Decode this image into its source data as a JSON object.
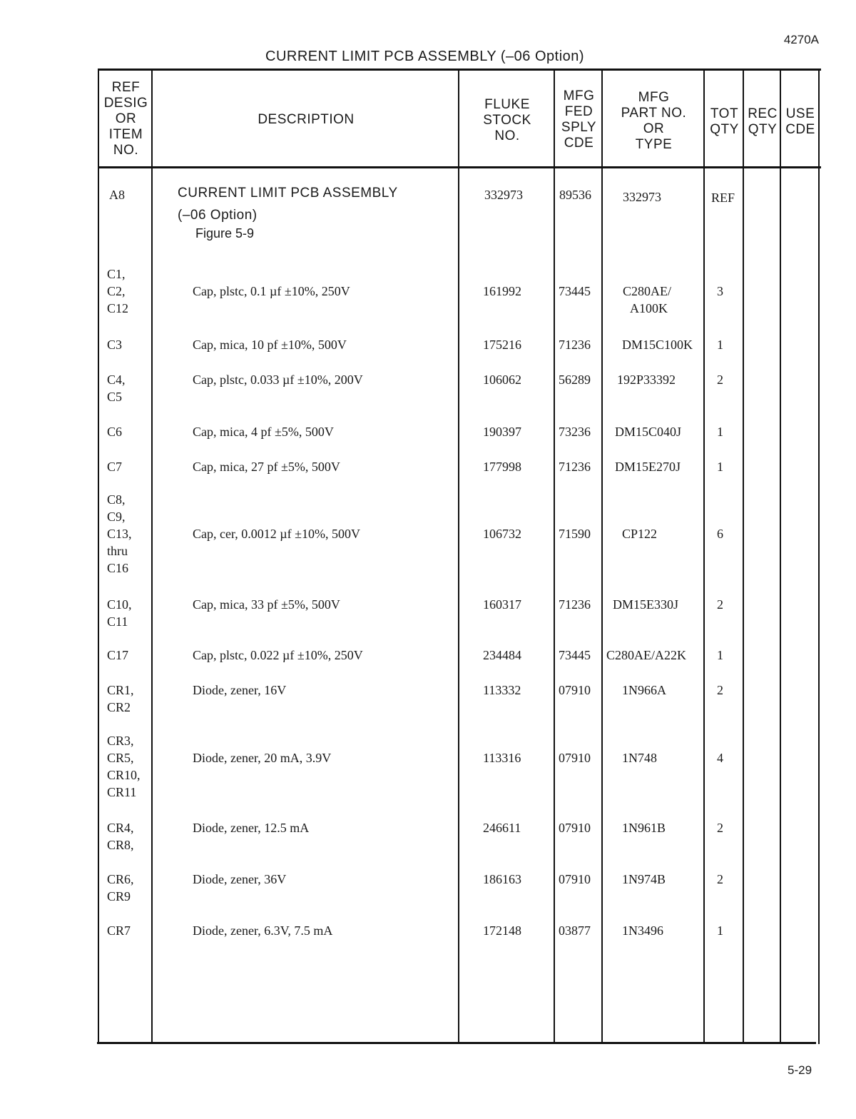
{
  "doc_code": "4270A",
  "title": "CURRENT LIMIT PCB ASSEMBLY (–06 Option)",
  "page_number": "5-29",
  "headers": {
    "ref": [
      "REF",
      "DESIG",
      "OR",
      "ITEM",
      "NO."
    ],
    "description": "DESCRIPTION",
    "stock": [
      "FLUKE",
      "STOCK",
      "NO."
    ],
    "fed": [
      "MFG",
      "FED",
      "SPLY",
      "CDE"
    ],
    "part": [
      "MFG",
      "PART NO.",
      "OR",
      "TYPE"
    ],
    "tot": [
      "TOT",
      "QTY"
    ],
    "rec": [
      "REC",
      "QTY"
    ],
    "use": [
      "USE",
      "CDE"
    ]
  },
  "assembly": {
    "ref": "A8",
    "description": "CURRENT LIMIT PCB ASSEMBLY",
    "option": "(–06 Option)",
    "figure": "Figure 5-9",
    "stock": "332973",
    "fed": "89536",
    "part": "332973",
    "tot": "REF"
  },
  "rows": [
    {
      "refs": [
        "C1,",
        "C2,",
        "C12"
      ],
      "description": "Cap, plstc, 0.1 µf ±10%, 250V",
      "stock": "161992",
      "fed": "73445",
      "part": [
        "C280AE/",
        "A100K"
      ],
      "tot": "3"
    },
    {
      "refs": [
        "C3"
      ],
      "description": "Cap, mica, 10 pf ±10%, 500V",
      "stock": "175216",
      "fed": "71236",
      "part": [
        "DM15C100K"
      ],
      "tot": "1"
    },
    {
      "refs": [
        "C4,",
        "C5"
      ],
      "description": "Cap, plstc, 0.033 µf ±10%, 200V",
      "stock": "106062",
      "fed": "56289",
      "part": [
        "192P33392"
      ],
      "tot": "2"
    },
    {
      "refs": [
        "C6"
      ],
      "description": "Cap, mica, 4 pf ±5%, 500V",
      "stock": "190397",
      "fed": "73236",
      "part": [
        "DM15C040J"
      ],
      "tot": "1"
    },
    {
      "refs": [
        "C7"
      ],
      "description": "Cap, mica, 27 pf ±5%, 500V",
      "stock": "177998",
      "fed": "71236",
      "part": [
        "DM15E270J"
      ],
      "tot": "1"
    },
    {
      "refs": [
        "C8,",
        "C9,",
        "C13,",
        "thru",
        "C16"
      ],
      "description": "Cap, cer, 0.0012 µf ±10%, 500V",
      "stock": "106732",
      "fed": "71590",
      "part": [
        "CP122"
      ],
      "tot": "6"
    },
    {
      "refs": [
        "C10,",
        "C11"
      ],
      "description": "Cap, mica, 33 pf ±5%, 500V",
      "stock": "160317",
      "fed": "71236",
      "part": [
        "DM15E330J"
      ],
      "tot": "2"
    },
    {
      "refs": [
        "C17"
      ],
      "description": "Cap, plstc, 0.022 µf ±10%, 250V",
      "stock": "234484",
      "fed": "73445",
      "part": [
        "C280AE/A22K"
      ],
      "tot": "1"
    },
    {
      "refs": [
        "CR1,",
        "CR2"
      ],
      "description": "Diode, zener, 16V",
      "stock": "113332",
      "fed": "07910",
      "part": [
        "1N966A"
      ],
      "tot": "2"
    },
    {
      "refs": [
        "CR3,",
        "CR5,",
        "CR10,",
        "CR11"
      ],
      "description": "Diode, zener, 20 mA, 3.9V",
      "stock": "113316",
      "fed": "07910",
      "part": [
        "1N748"
      ],
      "tot": "4"
    },
    {
      "refs": [
        "CR4,",
        "CR8,"
      ],
      "description": "Diode, zener, 12.5 mA",
      "stock": "246611",
      "fed": "07910",
      "part": [
        "1N961B"
      ],
      "tot": "2"
    },
    {
      "refs": [
        "CR6,",
        "CR9"
      ],
      "description": "Diode, zener, 36V",
      "stock": "186163",
      "fed": "07910",
      "part": [
        "1N974B"
      ],
      "tot": "2"
    },
    {
      "refs": [
        "CR7"
      ],
      "description": "Diode, zener, 6.3V, 7.5 mA",
      "stock": "172148",
      "fed": "03877",
      "part": [
        "1N3496"
      ],
      "tot": "1"
    }
  ]
}
